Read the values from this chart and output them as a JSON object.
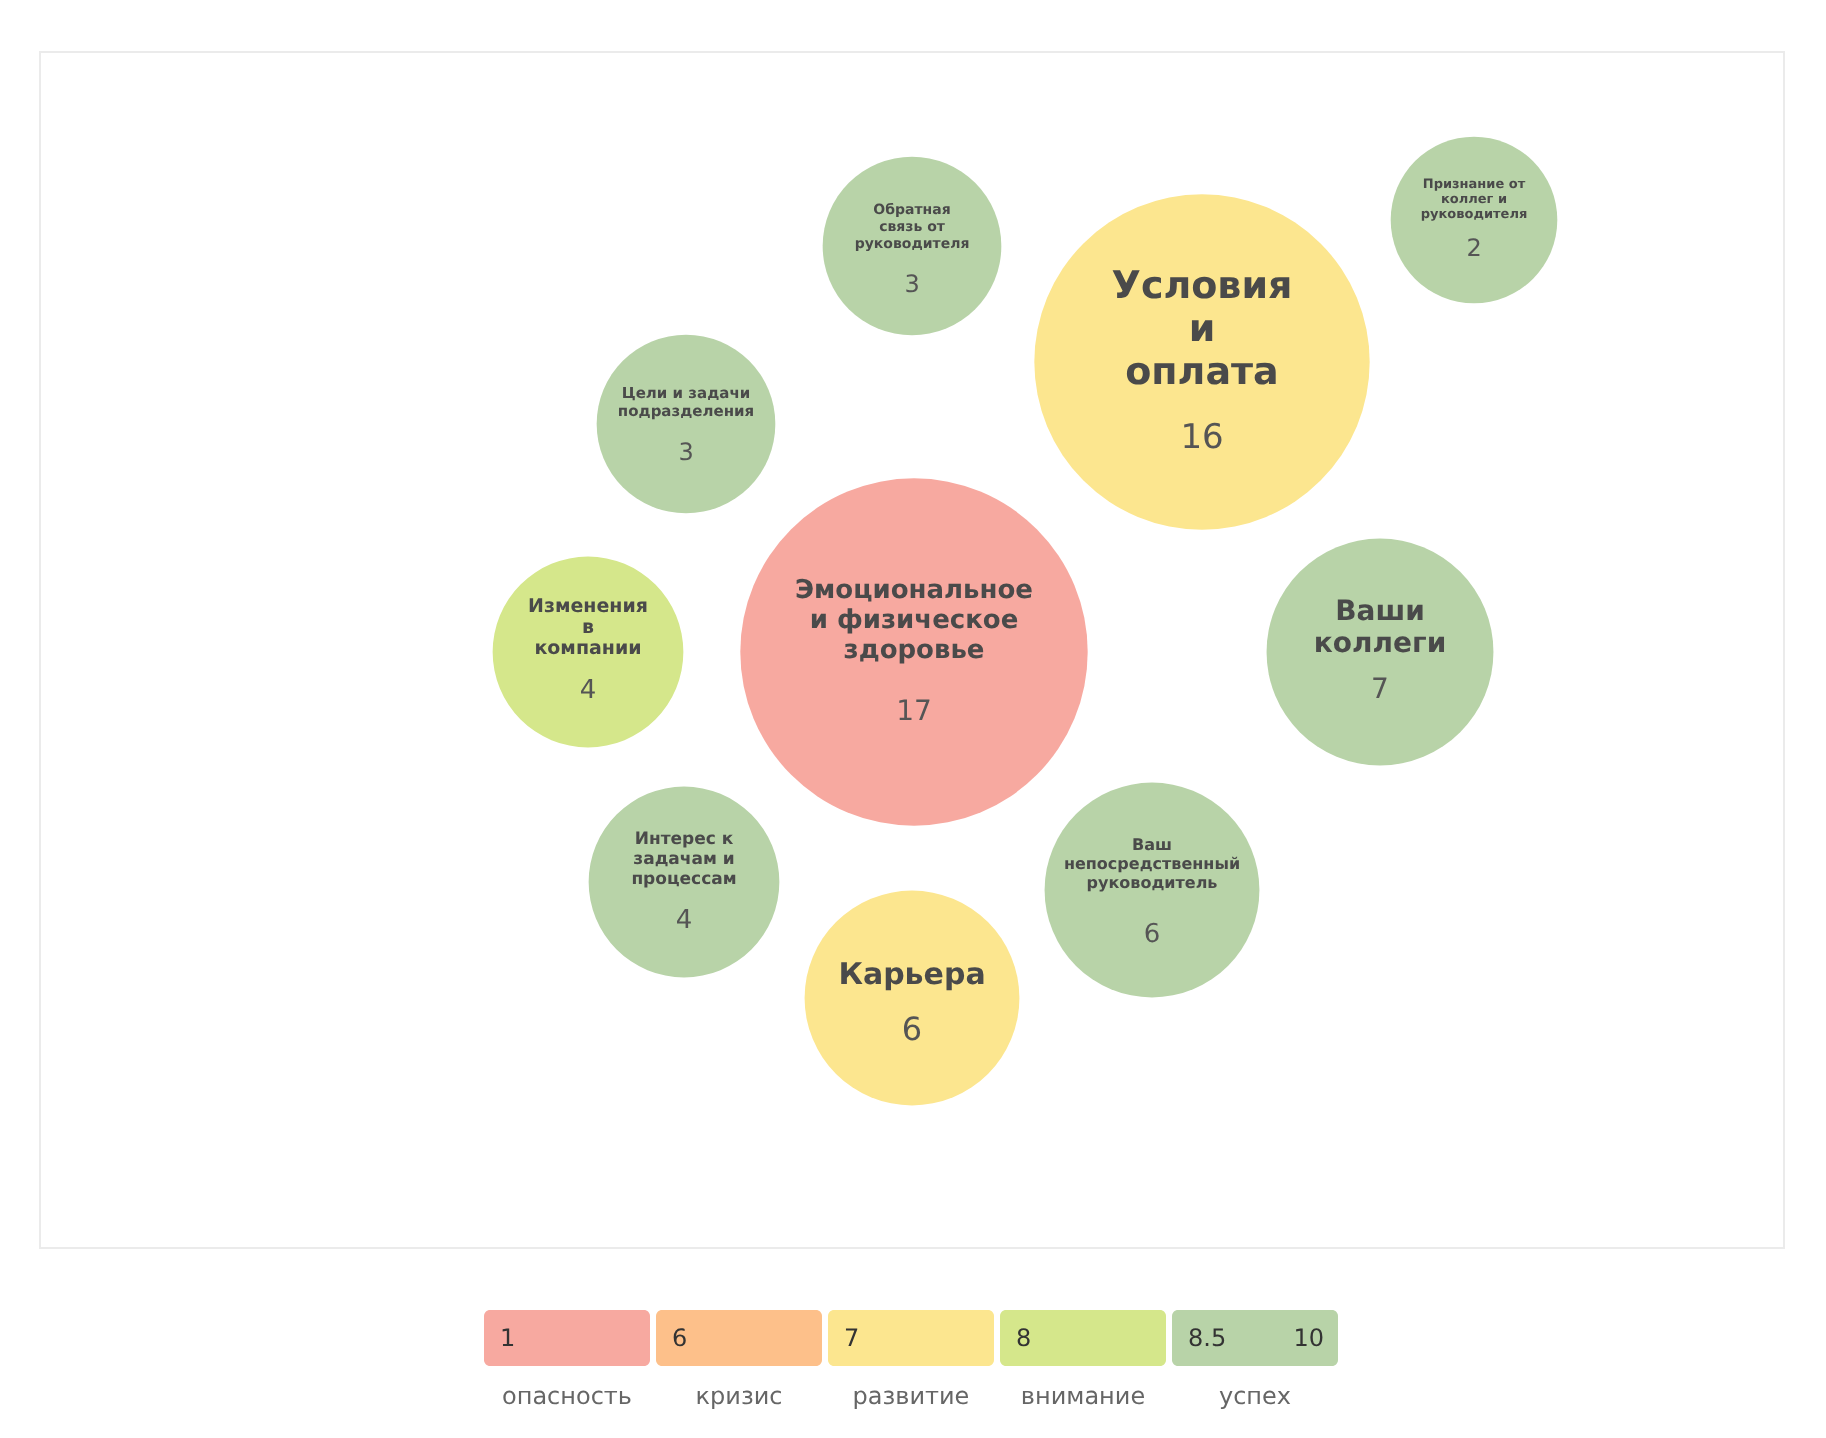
{
  "chart_data": [
    {
      "type": "other",
      "categories": [
        "Обратная связь от руководителя",
        "Условия и оплата",
        "Признание от коллег и руководителя",
        "Цели и задачи подразделения",
        "Изменения в компании",
        "Эмоциональное и физическое здоровье",
        "Ваши коллеги",
        "Интерес к задачам и процессам",
        "Ваш непосредственный руководитель",
        "Карьера"
      ],
      "values": [
        3,
        16,
        2,
        3,
        4,
        17,
        7,
        4,
        6,
        6
      ],
      "colors": [
        "#b8d3a8",
        "#fce68f",
        "#b8d3a8",
        "#b8d3a8",
        "#d5e78b",
        "#f7a9a0",
        "#b8d3a8",
        "#b8d3a8",
        "#b8d3a8",
        "#fce68f"
      ],
      "data_labels": true
    },
    {
      "type": "other",
      "colors": [
        "#f7a9a0",
        "#fdc08a",
        "#fce68f",
        "#d5e78b",
        "#b8d3a8"
      ],
      "annotations": [
        "1",
        "6",
        "7",
        "8",
        "8.5",
        "10",
        "опасность",
        "кризис",
        "развитие",
        "внимание",
        "успех"
      ]
    }
  ]
}
